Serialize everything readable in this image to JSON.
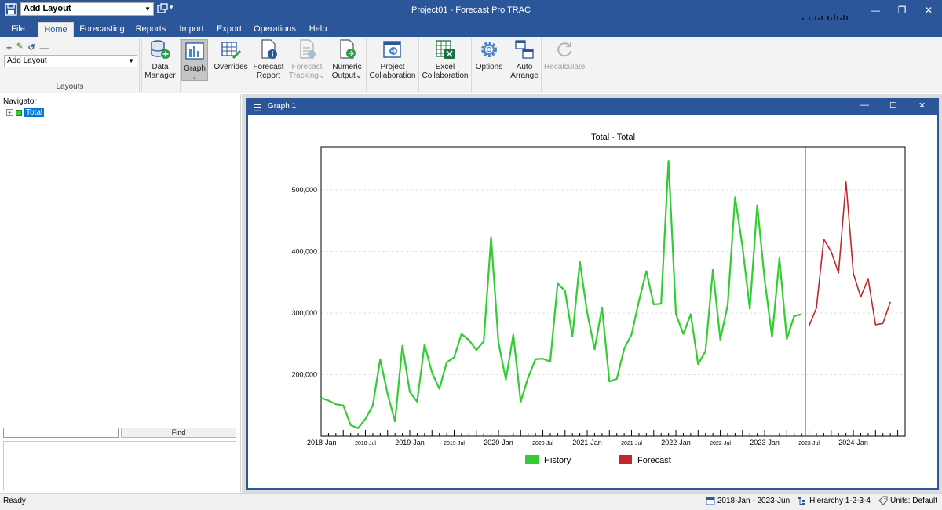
{
  "titlebar": {
    "layout_combo": "Add Layout",
    "app_title": "Project01 - Forecast Pro TRAC",
    "win_minimize": "—",
    "win_restore": "❐",
    "win_close": "✕"
  },
  "menu": {
    "tabs": [
      {
        "label": "File"
      },
      {
        "label": "Home"
      },
      {
        "label": "Forecasting"
      },
      {
        "label": "Reports"
      },
      {
        "label": "Import"
      },
      {
        "label": "Export"
      },
      {
        "label": "Operations"
      },
      {
        "label": "Help"
      }
    ],
    "active": "Home"
  },
  "ribbon": {
    "layouts_combo": "Add Layout",
    "layouts_group_label": "Layouts",
    "buttons": [
      {
        "label": "Data\nManager",
        "l1": "Data",
        "l2": "Manager"
      },
      {
        "label": "Graph",
        "l1": "Graph",
        "l2": "⌄"
      },
      {
        "label": "Overrides",
        "l1": "Overrides",
        "l2": ""
      },
      {
        "label": "Forecast Report",
        "l1": "Forecast",
        "l2": "Report"
      },
      {
        "label": "Forecast Tracking",
        "l1": "Forecast",
        "l2": "Tracking⌄"
      },
      {
        "label": "Numeric Output",
        "l1": "Numeric",
        "l2": "Output⌄"
      },
      {
        "label": "Project Collaboration",
        "l1": "Project",
        "l2": "Collaboration"
      },
      {
        "label": "Excel Collaboration",
        "l1": "Excel",
        "l2": "Collaboration"
      },
      {
        "label": "Options",
        "l1": "Options",
        "l2": ""
      },
      {
        "label": "Auto Arrange",
        "l1": "Auto",
        "l2": "Arrange"
      },
      {
        "label": "Recalculate",
        "l1": "Recalculate",
        "l2": ""
      }
    ]
  },
  "navigator": {
    "title": "Navigator",
    "tree_item": "Total",
    "find_button": "Find",
    "find_value": ""
  },
  "graph_window": {
    "title": "Graph 1",
    "win_minimize": "—",
    "win_restore": "☐",
    "win_close": "✕"
  },
  "chart_data": {
    "type": "line",
    "title": "Total - Total",
    "xlabel": "",
    "ylabel": "",
    "ylim": [
      100000,
      570000
    ],
    "yticks": [
      200000,
      300000,
      400000,
      500000
    ],
    "ytick_labels": [
      "200,000",
      "300,000",
      "400,000",
      "500,000"
    ],
    "xlim_month_index": [
      0,
      79
    ],
    "xtick_labels": [
      {
        "label": "2018-Jan",
        "month_index": 0,
        "major": true
      },
      {
        "label": "2018-Jul",
        "month_index": 6,
        "major": false
      },
      {
        "label": "2019-Jan",
        "month_index": 12,
        "major": true
      },
      {
        "label": "2019-Jul",
        "month_index": 18,
        "major": false
      },
      {
        "label": "2020-Jan",
        "month_index": 24,
        "major": true
      },
      {
        "label": "2020-Jul",
        "month_index": 30,
        "major": false
      },
      {
        "label": "2021-Jan",
        "month_index": 36,
        "major": true
      },
      {
        "label": "2021-Jul",
        "month_index": 42,
        "major": false
      },
      {
        "label": "2022-Jan",
        "month_index": 48,
        "major": true
      },
      {
        "label": "2022-Jul",
        "month_index": 54,
        "major": false
      },
      {
        "label": "2023-Jan",
        "month_index": 60,
        "major": true
      },
      {
        "label": "2023-Jul",
        "month_index": 66,
        "major": false
      },
      {
        "label": "2024-Jan",
        "month_index": 72,
        "major": true
      }
    ],
    "series": [
      {
        "name": "History",
        "color": "#33cc33",
        "start_month_index": 0,
        "values": [
          162000,
          158000,
          152000,
          150000,
          118000,
          113000,
          128000,
          150000,
          225000,
          168000,
          124000,
          247000,
          172000,
          156000,
          249000,
          203000,
          177000,
          220000,
          228000,
          266000,
          256000,
          240000,
          254000,
          423000,
          252000,
          192000,
          265000,
          156000,
          195000,
          225000,
          226000,
          221000,
          348000,
          336000,
          262000,
          383000,
          301000,
          241000,
          309000,
          189000,
          193000,
          242000,
          265000,
          320000,
          368000,
          314000,
          315000,
          547000,
          298000,
          266000,
          298000,
          217000,
          238000,
          370000,
          257000,
          313000,
          488000,
          408000,
          307000,
          475000,
          354000,
          261000,
          389000,
          258000,
          295000,
          298000
        ]
      },
      {
        "name": "Forecast",
        "color": "#c0272d",
        "start_month_index": 66,
        "values": [
          279000,
          308000,
          420000,
          400000,
          365000,
          513000,
          364000,
          326000,
          356000,
          281000,
          283000,
          318000
        ]
      }
    ],
    "forecast_divider_month_index": 65.5,
    "legend": [
      {
        "label": "History",
        "color": "#33cc33"
      },
      {
        "label": "Forecast",
        "color": "#c0272d"
      }
    ],
    "legend_position": "bottom",
    "grid": true
  },
  "status": {
    "ready": "Ready",
    "date_range": "2018-Jan - 2023-Jun",
    "hierarchy": "Hierarchy 1-2-3-4",
    "units": "Units: Default"
  }
}
